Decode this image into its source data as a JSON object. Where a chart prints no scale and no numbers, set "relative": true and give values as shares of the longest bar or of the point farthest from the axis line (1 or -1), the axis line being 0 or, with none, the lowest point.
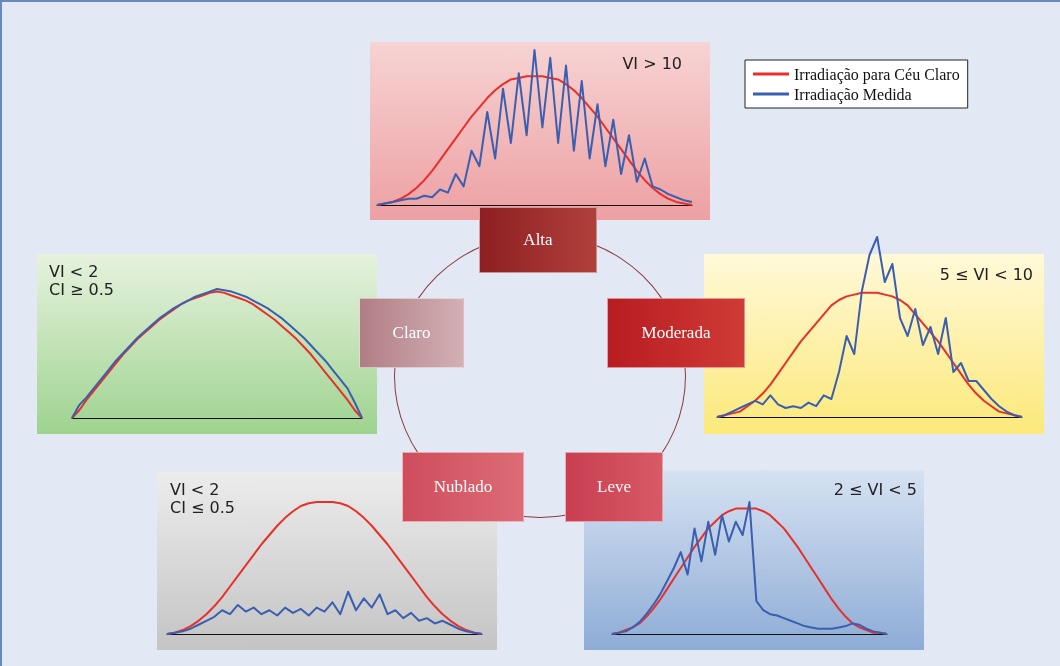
{
  "chart_data": [
    {
      "type": "line",
      "title": "VI > 10",
      "relative": true,
      "legend": "right",
      "categories": [
        null,
        null,
        null,
        null,
        null,
        null,
        null,
        null,
        null,
        null,
        null,
        null,
        null,
        null,
        null,
        null,
        null,
        null,
        null,
        null,
        null,
        null,
        null,
        null,
        null,
        null,
        null,
        null,
        null,
        null,
        null,
        null,
        null,
        null,
        null,
        null,
        null,
        null,
        null,
        null,
        null
      ],
      "series": [
        {
          "name": "Irradiação para Céu Claro",
          "color": "#e8302a",
          "values": [
            0,
            0.01,
            0.02,
            0.04,
            0.07,
            0.11,
            0.16,
            0.22,
            0.29,
            0.36,
            0.43,
            0.5,
            0.57,
            0.63,
            0.69,
            0.74,
            0.78,
            0.81,
            0.82,
            0.83,
            0.83,
            0.83,
            0.82,
            0.81,
            0.78,
            0.74,
            0.69,
            0.63,
            0.57,
            0.5,
            0.43,
            0.36,
            0.29,
            0.22,
            0.16,
            0.11,
            0.07,
            0.04,
            0.02,
            0.01,
            0
          ]
        },
        {
          "name": "Irradiação Medida",
          "color": "#3a5fb0",
          "values": [
            0,
            0.01,
            0.02,
            0.03,
            0.04,
            0.04,
            0.06,
            0.05,
            0.1,
            0.08,
            0.2,
            0.12,
            0.35,
            0.25,
            0.6,
            0.3,
            0.75,
            0.4,
            0.85,
            0.45,
            1.0,
            0.5,
            0.95,
            0.4,
            0.9,
            0.35,
            0.8,
            0.3,
            0.65,
            0.25,
            0.55,
            0.2,
            0.45,
            0.15,
            0.3,
            0.12,
            0.1,
            0.07,
            0.05,
            0.03,
            0.02
          ]
        }
      ]
    },
    {
      "type": "line",
      "title": "VI < 2",
      "subtitle": "CI ≥ 0.5",
      "relative": true,
      "categories": [
        null,
        null,
        null,
        null,
        null,
        null,
        null,
        null,
        null,
        null,
        null,
        null,
        null,
        null,
        null,
        null,
        null,
        null,
        null,
        null,
        null,
        null,
        null,
        null,
        null,
        null,
        null,
        null,
        null,
        null,
        null,
        null,
        null,
        null,
        null,
        null,
        null,
        null,
        null,
        null,
        null
      ],
      "series": [
        {
          "color": "#e8302a",
          "values": [
            0,
            0.06,
            0.14,
            0.21,
            0.28,
            0.35,
            0.42,
            0.49,
            0.55,
            0.61,
            0.66,
            0.71,
            0.76,
            0.8,
            0.84,
            0.88,
            0.91,
            0.93,
            0.95,
            0.97,
            0.98,
            0.97,
            0.95,
            0.93,
            0.91,
            0.88,
            0.84,
            0.8,
            0.76,
            0.71,
            0.66,
            0.61,
            0.55,
            0.49,
            0.42,
            0.35,
            0.28,
            0.21,
            0.14,
            0.06,
            0
          ]
        },
        {
          "color": "#3a5fb0",
          "values": [
            0,
            0.1,
            0.16,
            0.23,
            0.3,
            0.37,
            0.44,
            0.5,
            0.56,
            0.62,
            0.67,
            0.72,
            0.77,
            0.81,
            0.85,
            0.88,
            0.91,
            0.94,
            0.96,
            0.98,
            1.0,
            0.99,
            0.98,
            0.96,
            0.94,
            0.91,
            0.88,
            0.85,
            0.81,
            0.77,
            0.72,
            0.67,
            0.62,
            0.56,
            0.5,
            0.44,
            0.37,
            0.3,
            0.23,
            0.12,
            0
          ]
        }
      ]
    },
    {
      "type": "line",
      "title": "5 ≤ VI < 10",
      "relative": true,
      "categories": [
        null,
        null,
        null,
        null,
        null,
        null,
        null,
        null,
        null,
        null,
        null,
        null,
        null,
        null,
        null,
        null,
        null,
        null,
        null,
        null,
        null,
        null,
        null,
        null,
        null,
        null,
        null,
        null,
        null,
        null,
        null,
        null,
        null,
        null,
        null,
        null,
        null,
        null,
        null,
        null,
        null
      ],
      "series": [
        {
          "color": "#e8302a",
          "values": [
            0,
            0.01,
            0.02,
            0.03,
            0.06,
            0.09,
            0.13,
            0.18,
            0.24,
            0.3,
            0.36,
            0.42,
            0.47,
            0.52,
            0.57,
            0.62,
            0.65,
            0.67,
            0.68,
            0.69,
            0.69,
            0.69,
            0.68,
            0.67,
            0.65,
            0.62,
            0.57,
            0.52,
            0.47,
            0.42,
            0.36,
            0.3,
            0.24,
            0.18,
            0.13,
            0.09,
            0.06,
            0.03,
            0.02,
            0.01,
            0
          ]
        },
        {
          "color": "#3a5fb0",
          "values": [
            0,
            0.01,
            0.03,
            0.05,
            0.07,
            0.09,
            0.07,
            0.12,
            0.07,
            0.05,
            0.06,
            0.05,
            0.08,
            0.06,
            0.12,
            0.1,
            0.25,
            0.45,
            0.35,
            0.7,
            0.9,
            1.0,
            0.75,
            0.85,
            0.55,
            0.45,
            0.6,
            0.4,
            0.5,
            0.35,
            0.55,
            0.25,
            0.3,
            0.2,
            0.2,
            0.15,
            0.1,
            0.06,
            0.03,
            0.01,
            0
          ]
        }
      ]
    },
    {
      "type": "line",
      "title": "VI < 2",
      "subtitle": "CI ≤ 0.5",
      "relative": true,
      "categories": [
        null,
        null,
        null,
        null,
        null,
        null,
        null,
        null,
        null,
        null,
        null,
        null,
        null,
        null,
        null,
        null,
        null,
        null,
        null,
        null,
        null,
        null,
        null,
        null,
        null,
        null,
        null,
        null,
        null,
        null,
        null,
        null,
        null,
        null,
        null,
        null,
        null,
        null,
        null,
        null,
        null
      ],
      "series": [
        {
          "color": "#e8302a",
          "values": [
            0,
            0.01,
            0.03,
            0.06,
            0.1,
            0.15,
            0.21,
            0.28,
            0.36,
            0.44,
            0.52,
            0.6,
            0.68,
            0.75,
            0.82,
            0.88,
            0.93,
            0.97,
            0.99,
            1.0,
            1.0,
            1.0,
            0.99,
            0.97,
            0.93,
            0.88,
            0.82,
            0.75,
            0.68,
            0.6,
            0.52,
            0.44,
            0.36,
            0.28,
            0.21,
            0.15,
            0.1,
            0.06,
            0.03,
            0.01,
            0
          ]
        },
        {
          "color": "#3a5fb0",
          "values": [
            0,
            0.01,
            0.02,
            0.04,
            0.07,
            0.1,
            0.13,
            0.18,
            0.15,
            0.22,
            0.17,
            0.2,
            0.15,
            0.18,
            0.14,
            0.2,
            0.16,
            0.19,
            0.14,
            0.2,
            0.17,
            0.24,
            0.15,
            0.32,
            0.18,
            0.27,
            0.2,
            0.3,
            0.15,
            0.18,
            0.12,
            0.16,
            0.1,
            0.12,
            0.08,
            0.1,
            0.07,
            0.04,
            0.02,
            0.01,
            0
          ]
        }
      ]
    },
    {
      "type": "line",
      "title": "2 ≤ VI < 5",
      "relative": true,
      "categories": [
        null,
        null,
        null,
        null,
        null,
        null,
        null,
        null,
        null,
        null,
        null,
        null,
        null,
        null,
        null,
        null,
        null,
        null,
        null,
        null,
        null,
        null,
        null,
        null,
        null,
        null,
        null,
        null,
        null,
        null,
        null,
        null,
        null,
        null,
        null,
        null,
        null,
        null,
        null,
        null,
        null
      ],
      "series": [
        {
          "color": "#e8302a",
          "values": [
            0,
            0.01,
            0.03,
            0.05,
            0.08,
            0.13,
            0.19,
            0.26,
            0.34,
            0.42,
            0.5,
            0.58,
            0.66,
            0.73,
            0.8,
            0.85,
            0.9,
            0.93,
            0.95,
            0.95,
            0.95,
            0.95,
            0.93,
            0.9,
            0.85,
            0.8,
            0.73,
            0.66,
            0.58,
            0.5,
            0.42,
            0.34,
            0.26,
            0.19,
            0.13,
            0.08,
            0.05,
            0.03,
            0.01,
            0.01,
            0
          ]
        },
        {
          "color": "#3a5fb0",
          "values": [
            0,
            0.01,
            0.02,
            0.05,
            0.09,
            0.15,
            0.22,
            0.3,
            0.4,
            0.5,
            0.62,
            0.45,
            0.8,
            0.55,
            0.85,
            0.6,
            0.9,
            0.7,
            0.85,
            0.75,
            1.0,
            0.25,
            0.18,
            0.15,
            0.14,
            0.12,
            0.1,
            0.08,
            0.06,
            0.05,
            0.04,
            0.04,
            0.04,
            0.05,
            0.06,
            0.08,
            0.07,
            0.04,
            0.02,
            0.01,
            0
          ]
        }
      ]
    },
    {
      "type": "other",
      "annotations": [
        "Alta",
        "Moderada",
        "Leve",
        "Nublado",
        "Claro"
      ]
    }
  ]
}
